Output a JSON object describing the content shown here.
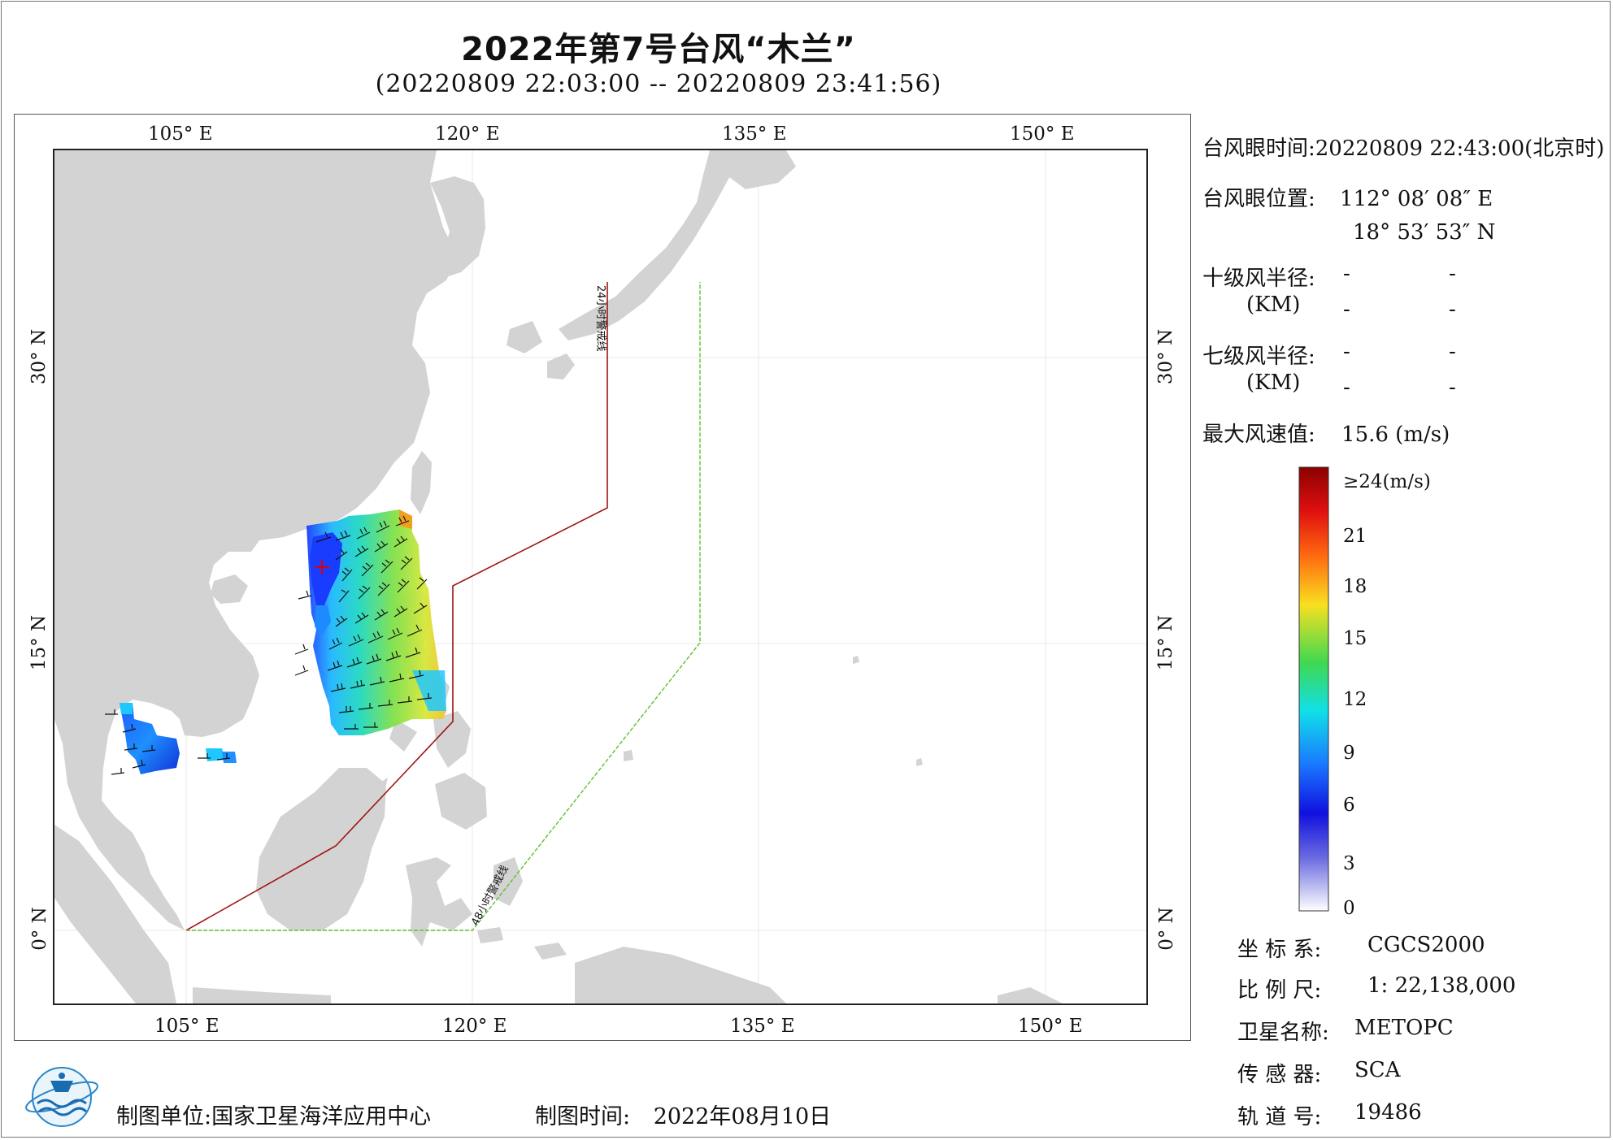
{
  "title": "2022年第7号台风“木兰”",
  "subtitle": "(20220809 22:03:00 -- 20220809 23:41:56)",
  "map": {
    "lon_ticks_top": [
      "105° E",
      "120° E",
      "135° E",
      "150° E"
    ],
    "lon_ticks_bottom": [
      "105° E",
      "120° E",
      "135° E",
      "150° E"
    ],
    "lat_ticks_left": [
      "30° N",
      "15° N",
      "0° N"
    ],
    "lat_ticks_right": [
      "30° N",
      "15° N",
      "0° N"
    ],
    "warning_line_24h": "24小时警戒线",
    "warning_line_48h": "48小时警戒线",
    "colors": {
      "land": "#d3d3d3",
      "ocean": "#ffffff",
      "line_24h": "#a01414",
      "line_48h": "#5cc22c",
      "grid": "#e8e8e8",
      "eye_marker": "#e00000"
    }
  },
  "info": {
    "eye_time_label": "台风眼时间:",
    "eye_time_value": "20220809 22:43:00(北京时)",
    "eye_pos_label": "台风眼位置:",
    "eye_lon": "112° 08′ 08″ E",
    "eye_lat": "18° 53′ 53″ N",
    "r10_label": "十级风半径:",
    "r7_label": "七级风半径:",
    "km_label": "(KM)",
    "dash": "-",
    "max_wind_label": "最大风速值:",
    "max_wind_value": "15.6 (m/s)"
  },
  "colorbar": {
    "top_label": "≥24(m/s)",
    "ticks": [
      "21",
      "18",
      "15",
      "12",
      "9",
      "6",
      "3",
      "0"
    ]
  },
  "meta": {
    "crs_label": "坐 标 系:",
    "crs_value": "CGCS2000",
    "scale_label": "比 例 尺:",
    "scale_value": "1: 22,138,000",
    "satellite_label": "卫星名称:",
    "satellite_value": "METOPC",
    "sensor_label": "传 感 器:",
    "sensor_value": "SCA",
    "orbit_label": "轨 道 号:",
    "orbit_value": "19486"
  },
  "footer": {
    "unit_label": "制图单位:",
    "unit_value": "国家卫星海洋应用中心",
    "date_label": "制图时间:",
    "date_value": "2022年08月10日"
  }
}
